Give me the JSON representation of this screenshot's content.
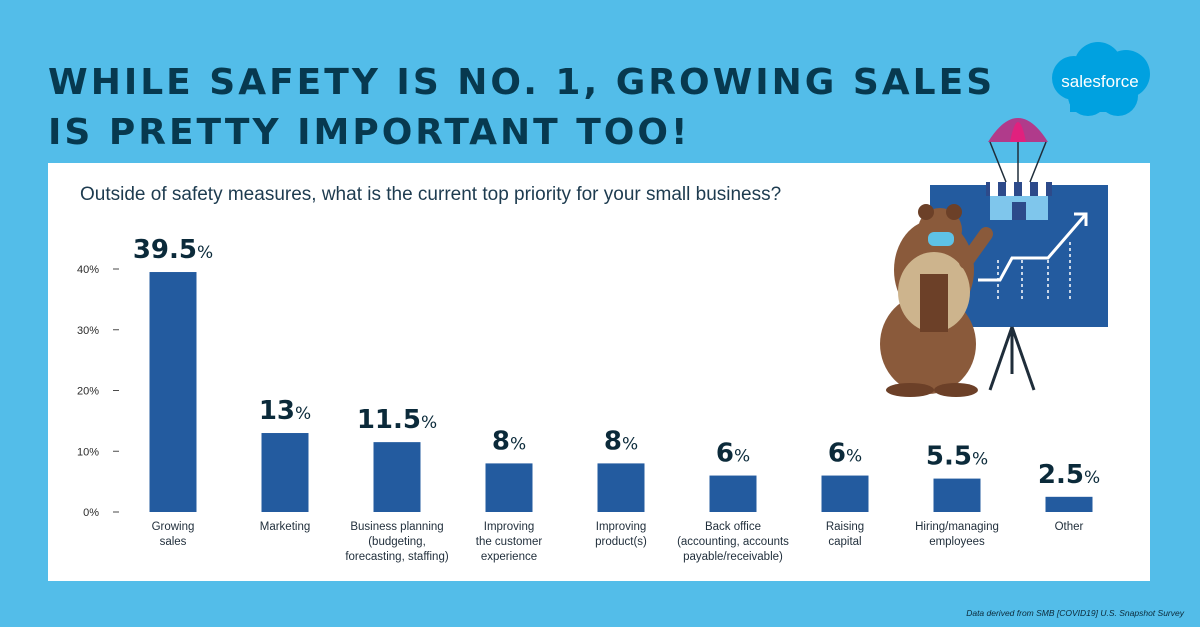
{
  "headline": {
    "line1": "WHILE SAFETY IS NO. 1, GROWING SALES",
    "line2": "IS PRETTY IMPORTANT TOO!"
  },
  "logo_text": "salesforce",
  "source_note": "Data derived from SMB [COVID19] U.S. Snapshot Survey",
  "colors": {
    "background": "#53bde9",
    "headline": "#07394f",
    "bar": "#235b9f",
    "value_label": "#0b2a3a",
    "logo_cloud": "#00a1e0"
  },
  "illustration": {
    "icons": [
      "bear-mascot-icon",
      "parachute-icon",
      "storefront-icon",
      "growth-board-icon"
    ]
  },
  "chart_data": {
    "type": "bar",
    "title": "Outside of safety measures, what is the current top priority for your small business?",
    "categories": [
      [
        "Growing",
        "sales"
      ],
      [
        "Marketing"
      ],
      [
        "Business planning",
        "(budgeting,",
        "forecasting, staffing)"
      ],
      [
        "Improving",
        "the customer",
        "experience"
      ],
      [
        "Improving",
        "product(s)"
      ],
      [
        "Back office",
        "(accounting, accounts",
        "payable/receivable)"
      ],
      [
        "Raising",
        "capital"
      ],
      [
        "Hiring/managing",
        "employees"
      ],
      [
        "Other"
      ]
    ],
    "values": [
      39.5,
      13,
      11.5,
      8,
      8,
      6,
      6,
      5.5,
      2.5
    ],
    "value_labels": [
      "39.5",
      "13",
      "11.5",
      "8",
      "8",
      "6",
      "6",
      "5.5",
      "2.5"
    ],
    "value_suffix": "%",
    "yticks": [
      0,
      10,
      20,
      30,
      40
    ],
    "ytick_labels": [
      "0%",
      "10%",
      "20%",
      "30%",
      "40%"
    ],
    "ylim": [
      0,
      40
    ],
    "grid": false
  }
}
